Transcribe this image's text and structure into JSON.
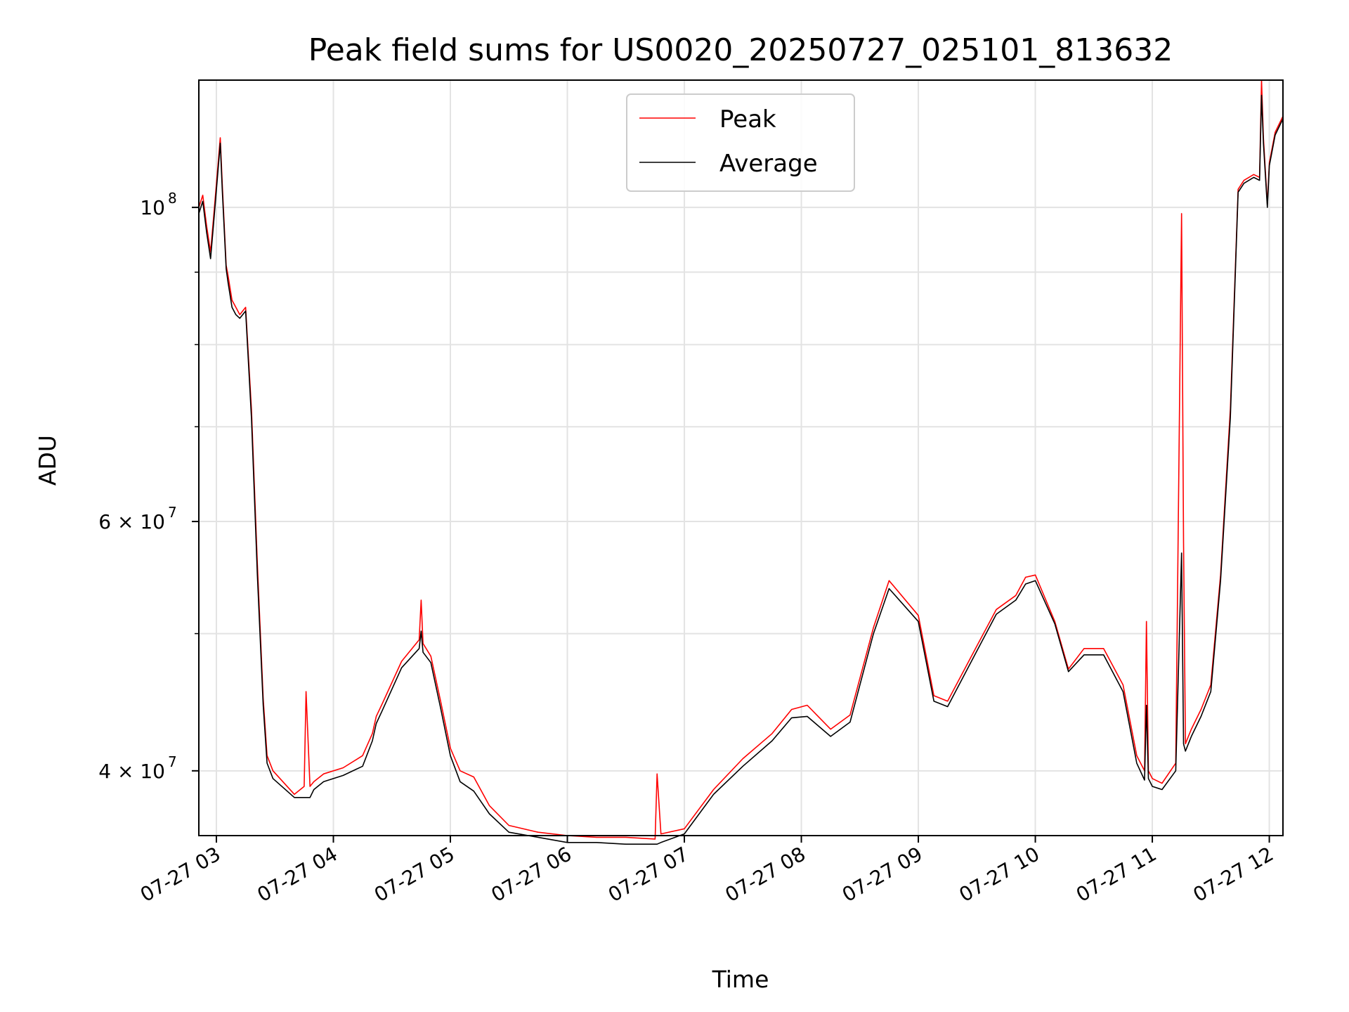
{
  "chart_data": {
    "type": "line",
    "title": "Peak field sums for US0020_20250727_025101_813632",
    "xlabel": "Time",
    "ylabel": "ADU",
    "y_scale": "log",
    "ylim": [
      36000000,
      123000000
    ],
    "xlim": [
      "2025-07-27 02:51",
      "2025-07-27 12:07"
    ],
    "grid": true,
    "legend_position": "upper center",
    "x_ticks": [
      {
        "label": "07-27 03",
        "t": "2025-07-27 03:00"
      },
      {
        "label": "07-27 04",
        "t": "2025-07-27 04:00"
      },
      {
        "label": "07-27 05",
        "t": "2025-07-27 05:00"
      },
      {
        "label": "07-27 06",
        "t": "2025-07-27 06:00"
      },
      {
        "label": "07-27 07",
        "t": "2025-07-27 07:00"
      },
      {
        "label": "07-27 08",
        "t": "2025-07-27 08:00"
      },
      {
        "label": "07-27 09",
        "t": "2025-07-27 09:00"
      },
      {
        "label": "07-27 10",
        "t": "2025-07-27 10:00"
      },
      {
        "label": "07-27 11",
        "t": "2025-07-27 11:00"
      },
      {
        "label": "07-27 12",
        "t": "2025-07-27 12:00"
      }
    ],
    "y_ticks_major": [
      {
        "value": 100000000,
        "base": "10",
        "exp": "8"
      },
      {
        "value": 60000000,
        "base": "6 × 10",
        "exp": "7"
      },
      {
        "value": 40000000,
        "base": "4 × 10",
        "exp": "7"
      }
    ],
    "y_ticks_minor": [
      90000000,
      80000000,
      70000000,
      50000000
    ],
    "series": [
      {
        "name": "Peak",
        "color": "#ff0000",
        "x": [
          "2025-07-27 02:51",
          "2025-07-27 02:53",
          "2025-07-27 02:55",
          "2025-07-27 02:57",
          "2025-07-27 02:59",
          "2025-07-27 03:02",
          "2025-07-27 03:03",
          "2025-07-27 03:05",
          "2025-07-27 03:06",
          "2025-07-27 03:08",
          "2025-07-27 03:10",
          "2025-07-27 03:12",
          "2025-07-27 03:15",
          "2025-07-27 03:18",
          "2025-07-27 03:21",
          "2025-07-27 03:24",
          "2025-07-27 03:26",
          "2025-07-27 03:29",
          "2025-07-27 03:40",
          "2025-07-27 03:45",
          "2025-07-27 03:46",
          "2025-07-27 03:48",
          "2025-07-27 03:50",
          "2025-07-27 03:55",
          "2025-07-27 04:05",
          "2025-07-27 04:15",
          "2025-07-27 04:20",
          "2025-07-27 04:22",
          "2025-07-27 04:25",
          "2025-07-27 04:35",
          "2025-07-27 04:44",
          "2025-07-27 04:45",
          "2025-07-27 04:46",
          "2025-07-27 04:50",
          "2025-07-27 04:55",
          "2025-07-27 05:00",
          "2025-07-27 05:05",
          "2025-07-27 05:12",
          "2025-07-27 05:20",
          "2025-07-27 05:30",
          "2025-07-27 05:45",
          "2025-07-27 06:00",
          "2025-07-27 06:15",
          "2025-07-27 06:30",
          "2025-07-27 06:45",
          "2025-07-27 06:46",
          "2025-07-27 06:48",
          "2025-07-27 07:00",
          "2025-07-27 07:15",
          "2025-07-27 07:30",
          "2025-07-27 07:45",
          "2025-07-27 07:55",
          "2025-07-27 08:03",
          "2025-07-27 08:15",
          "2025-07-27 08:25",
          "2025-07-27 08:37",
          "2025-07-27 08:45",
          "2025-07-27 09:00",
          "2025-07-27 09:08",
          "2025-07-27 09:15",
          "2025-07-27 09:30",
          "2025-07-27 09:40",
          "2025-07-27 09:50",
          "2025-07-27 09:55",
          "2025-07-27 10:00",
          "2025-07-27 10:10",
          "2025-07-27 10:17",
          "2025-07-27 10:25",
          "2025-07-27 10:35",
          "2025-07-27 10:45",
          "2025-07-27 10:52",
          "2025-07-27 10:56",
          "2025-07-27 10:57",
          "2025-07-27 10:58",
          "2025-07-27 11:00",
          "2025-07-27 11:05",
          "2025-07-27 11:12",
          "2025-07-27 11:15",
          "2025-07-27 11:16",
          "2025-07-27 11:17",
          "2025-07-27 11:20",
          "2025-07-27 11:25",
          "2025-07-27 11:30",
          "2025-07-27 11:35",
          "2025-07-27 11:40",
          "2025-07-27 11:44",
          "2025-07-27 11:47",
          "2025-07-27 11:52",
          "2025-07-27 11:55",
          "2025-07-27 11:56",
          "2025-07-27 11:57",
          "2025-07-27 11:59",
          "2025-07-27 12:00",
          "2025-07-27 12:03",
          "2025-07-27 12:07"
        ],
        "y": [
          100000000,
          102000000,
          97000000,
          93000000,
          100000000,
          112000000,
          104000000,
          91000000,
          89500000,
          86000000,
          85000000,
          84000000,
          85000000,
          72000000,
          56000000,
          45000000,
          41000000,
          40000000,
          38500000,
          39000000,
          45500000,
          39000000,
          39300000,
          39800000,
          40200000,
          41000000,
          42500000,
          43700000,
          44600000,
          47800000,
          49500000,
          52800000,
          49200000,
          48200000,
          44800000,
          41500000,
          40000000,
          39600000,
          37800000,
          36600000,
          36200000,
          36000000,
          35900000,
          35900000,
          35800000,
          39800000,
          36100000,
          36400000,
          38800000,
          40800000,
          42500000,
          44200000,
          44500000,
          42800000,
          43800000,
          50500000,
          54500000,
          51500000,
          45200000,
          44800000,
          49000000,
          52000000,
          53200000,
          54800000,
          55000000,
          51000000,
          47200000,
          48800000,
          48800000,
          46000000,
          41000000,
          40000000,
          51000000,
          40000000,
          39500000,
          39200000,
          40500000,
          99000000,
          58000000,
          41800000,
          42800000,
          44200000,
          46000000,
          55000000,
          72000000,
          103000000,
          104500000,
          105500000,
          105000000,
          123000000,
          112000000,
          100500000,
          107500000,
          113000000,
          116000000
        ]
      },
      {
        "name": "Average",
        "color": "#000000",
        "x": [
          "2025-07-27 02:51",
          "2025-07-27 02:53",
          "2025-07-27 02:55",
          "2025-07-27 02:57",
          "2025-07-27 02:59",
          "2025-07-27 03:02",
          "2025-07-27 03:03",
          "2025-07-27 03:05",
          "2025-07-27 03:06",
          "2025-07-27 03:08",
          "2025-07-27 03:10",
          "2025-07-27 03:12",
          "2025-07-27 03:15",
          "2025-07-27 03:18",
          "2025-07-27 03:21",
          "2025-07-27 03:24",
          "2025-07-27 03:26",
          "2025-07-27 03:29",
          "2025-07-27 03:40",
          "2025-07-27 03:45",
          "2025-07-27 03:46",
          "2025-07-27 03:48",
          "2025-07-27 03:50",
          "2025-07-27 03:55",
          "2025-07-27 04:05",
          "2025-07-27 04:15",
          "2025-07-27 04:20",
          "2025-07-27 04:22",
          "2025-07-27 04:25",
          "2025-07-27 04:35",
          "2025-07-27 04:44",
          "2025-07-27 04:45",
          "2025-07-27 04:46",
          "2025-07-27 04:50",
          "2025-07-27 04:55",
          "2025-07-27 05:00",
          "2025-07-27 05:05",
          "2025-07-27 05:12",
          "2025-07-27 05:20",
          "2025-07-27 05:30",
          "2025-07-27 05:45",
          "2025-07-27 06:00",
          "2025-07-27 06:15",
          "2025-07-27 06:30",
          "2025-07-27 06:45",
          "2025-07-27 06:46",
          "2025-07-27 06:48",
          "2025-07-27 07:00",
          "2025-07-27 07:15",
          "2025-07-27 07:30",
          "2025-07-27 07:45",
          "2025-07-27 07:55",
          "2025-07-27 08:03",
          "2025-07-27 08:15",
          "2025-07-27 08:25",
          "2025-07-27 08:37",
          "2025-07-27 08:45",
          "2025-07-27 09:00",
          "2025-07-27 09:08",
          "2025-07-27 09:15",
          "2025-07-27 09:30",
          "2025-07-27 09:40",
          "2025-07-27 09:50",
          "2025-07-27 09:55",
          "2025-07-27 10:00",
          "2025-07-27 10:10",
          "2025-07-27 10:17",
          "2025-07-27 10:25",
          "2025-07-27 10:35",
          "2025-07-27 10:45",
          "2025-07-27 10:52",
          "2025-07-27 10:56",
          "2025-07-27 10:57",
          "2025-07-27 10:58",
          "2025-07-27 11:00",
          "2025-07-27 11:05",
          "2025-07-27 11:12",
          "2025-07-27 11:15",
          "2025-07-27 11:16",
          "2025-07-27 11:17",
          "2025-07-27 11:20",
          "2025-07-27 11:25",
          "2025-07-27 11:30",
          "2025-07-27 11:35",
          "2025-07-27 11:40",
          "2025-07-27 11:44",
          "2025-07-27 11:47",
          "2025-07-27 11:52",
          "2025-07-27 11:55",
          "2025-07-27 11:56",
          "2025-07-27 11:57",
          "2025-07-27 11:59",
          "2025-07-27 12:00",
          "2025-07-27 12:03",
          "2025-07-27 12:07"
        ],
        "y": [
          99000000,
          101000000,
          96000000,
          92000000,
          99000000,
          111000000,
          103000000,
          90500000,
          88500000,
          85000000,
          84000000,
          83500000,
          84500000,
          71000000,
          55000000,
          44500000,
          40500000,
          39500000,
          38300000,
          38300000,
          38300000,
          38300000,
          38800000,
          39300000,
          39700000,
          40300000,
          42000000,
          43200000,
          44100000,
          47300000,
          48800000,
          50200000,
          48500000,
          47700000,
          44300000,
          41000000,
          39300000,
          38700000,
          37300000,
          36200000,
          35900000,
          35600000,
          35600000,
          35500000,
          35500000,
          35500000,
          35600000,
          36100000,
          38500000,
          40300000,
          42000000,
          43600000,
          43700000,
          42300000,
          43300000,
          50000000,
          53800000,
          51000000,
          44800000,
          44400000,
          48600000,
          51600000,
          52800000,
          54200000,
          54500000,
          50800000,
          47000000,
          48300000,
          48300000,
          45500000,
          40500000,
          39400000,
          44500000,
          39500000,
          39000000,
          38800000,
          40000000,
          57000000,
          41800000,
          41300000,
          42300000,
          43700000,
          45500000,
          54500000,
          71000000,
          102500000,
          104000000,
          105000000,
          104500000,
          120000000,
          111000000,
          100000000,
          107000000,
          112500000,
          115500000
        ]
      }
    ]
  }
}
